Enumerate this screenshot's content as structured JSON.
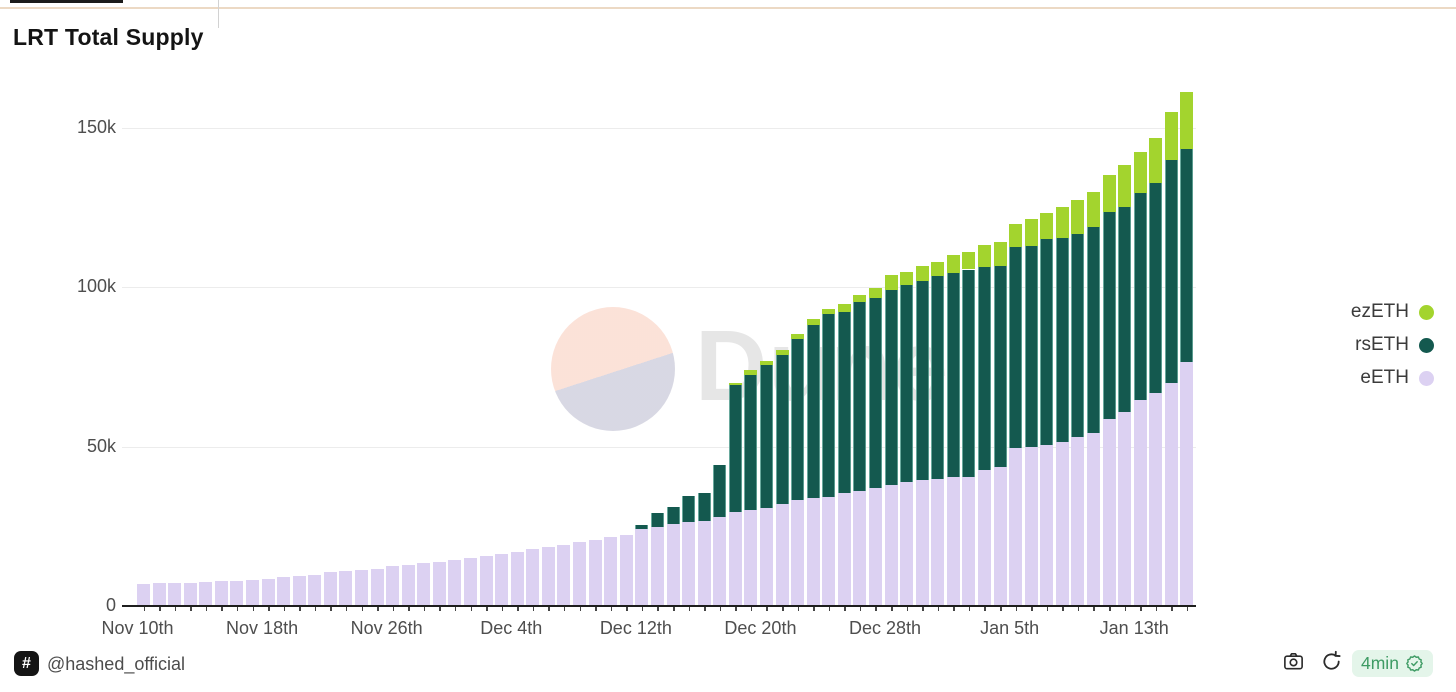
{
  "page": {
    "title": "LRT Total Supply"
  },
  "watermark": {
    "text": "Dune"
  },
  "legend": [
    {
      "label": "ezETH",
      "color": "#a3d42e"
    },
    {
      "label": "rsETH",
      "color": "#14594f"
    },
    {
      "label": "eETH",
      "color": "#dcd1f2"
    }
  ],
  "footer": {
    "hash_icon": "#",
    "handle": "@hashed_official",
    "camera_icon": "camera",
    "refresh_icon": "refresh",
    "age_label": "4min",
    "verified_icon": "verified-badge",
    "age_color": "#3e9b64"
  },
  "chart_data": {
    "type": "bar",
    "stacked": true,
    "title": "LRT Total Supply",
    "unit": "thousand tokens",
    "ylim": [
      0,
      160
    ],
    "grid": "horizontal",
    "legend_position": "right",
    "x": [
      "Nov 10",
      "Nov 11",
      "Nov 12",
      "Nov 13",
      "Nov 14",
      "Nov 15",
      "Nov 16",
      "Nov 17",
      "Nov 18",
      "Nov 19",
      "Nov 20",
      "Nov 21",
      "Nov 22",
      "Nov 23",
      "Nov 24",
      "Nov 25",
      "Nov 26",
      "Nov 27",
      "Nov 28",
      "Nov 29",
      "Nov 30",
      "Dec 1",
      "Dec 2",
      "Dec 3",
      "Dec 4",
      "Dec 5",
      "Dec 6",
      "Dec 7",
      "Dec 8",
      "Dec 9",
      "Dec 10",
      "Dec 11",
      "Dec 12",
      "Dec 13",
      "Dec 14",
      "Dec 15",
      "Dec 16",
      "Dec 17",
      "Dec 18",
      "Dec 19",
      "Dec 20",
      "Dec 21",
      "Dec 22",
      "Dec 23",
      "Dec 24",
      "Dec 25",
      "Dec 26",
      "Dec 27",
      "Dec 28",
      "Dec 29",
      "Dec 30",
      "Dec 31",
      "Jan 1",
      "Jan 2",
      "Jan 3",
      "Jan 4",
      "Jan 5",
      "Jan 6",
      "Jan 7",
      "Jan 8",
      "Jan 9",
      "Jan 10",
      "Jan 11",
      "Jan 12",
      "Jan 13",
      "Jan 14",
      "Jan 15",
      "Jan 16"
    ],
    "series": [
      {
        "name": "eETH",
        "color": "#dcd1f2",
        "values": [
          7.0,
          7.1,
          7.2,
          7.3,
          7.5,
          7.7,
          7.9,
          8.2,
          8.6,
          9.0,
          9.4,
          9.8,
          10.6,
          11.0,
          11.3,
          11.6,
          12.4,
          12.8,
          13.4,
          13.8,
          14.5,
          15.0,
          15.6,
          16.2,
          17.0,
          17.8,
          18.5,
          19.2,
          20.0,
          20.8,
          21.6,
          22.4,
          24.3,
          24.7,
          25.6,
          26.3,
          26.8,
          27.9,
          29.5,
          30.0,
          30.9,
          31.9,
          33.2,
          34.0,
          34.3,
          35.5,
          36.2,
          37.0,
          38.0,
          38.8,
          39.4,
          40.0,
          40.5,
          40.5,
          42.6,
          43.5,
          49.5,
          50.0,
          50.5,
          51.6,
          53.0,
          54.2,
          58.6,
          61.0,
          64.7,
          66.8,
          70.0,
          76.7
        ]
      },
      {
        "name": "rsETH",
        "color": "#14594f",
        "values": [
          0,
          0,
          0,
          0,
          0,
          0,
          0,
          0,
          0,
          0,
          0,
          0,
          0,
          0,
          0,
          0,
          0,
          0,
          0,
          0,
          0,
          0,
          0,
          0,
          0,
          0,
          0,
          0,
          0,
          0,
          0,
          0,
          1.0,
          4.4,
          5.4,
          8.1,
          8.7,
          16.3,
          39.7,
          42.6,
          44.6,
          47.0,
          50.5,
          54.1,
          57.3,
          56.8,
          59.1,
          59.8,
          61.3,
          61.9,
          62.7,
          63.5,
          64.0,
          65.1,
          63.7,
          63.3,
          63.1,
          63.0,
          64.8,
          64.0,
          63.8,
          64.8,
          65.1,
          64.3,
          64.8,
          65.8,
          70.0,
          66.7
        ]
      },
      {
        "name": "ezETH",
        "color": "#a3d42e",
        "values": [
          0,
          0,
          0,
          0,
          0,
          0,
          0,
          0,
          0,
          0,
          0,
          0,
          0,
          0,
          0,
          0,
          0,
          0,
          0,
          0,
          0,
          0,
          0,
          0,
          0,
          0,
          0,
          0,
          0,
          0,
          0,
          0,
          0,
          0,
          0,
          0,
          0,
          0,
          0.9,
          1.6,
          1.5,
          1.4,
          1.6,
          1.9,
          1.6,
          2.4,
          2.3,
          2.9,
          4.6,
          4.2,
          4.7,
          4.6,
          5.5,
          5.5,
          7.1,
          7.4,
          7.4,
          8.6,
          7.9,
          9.7,
          10.6,
          11.0,
          11.6,
          13.1,
          13.1,
          14.4,
          14.9,
          17.9
        ]
      }
    ],
    "yticks": [
      {
        "label": "0",
        "value": 0
      },
      {
        "label": "50k",
        "value": 50
      },
      {
        "label": "100k",
        "value": 100
      },
      {
        "label": "150k",
        "value": 150
      }
    ],
    "xticks": [
      {
        "label": "Nov 10th",
        "index": 0
      },
      {
        "label": "Nov 18th",
        "index": 8
      },
      {
        "label": "Nov 26th",
        "index": 16
      },
      {
        "label": "Dec 4th",
        "index": 24
      },
      {
        "label": "Dec 12th",
        "index": 32
      },
      {
        "label": "Dec 20th",
        "index": 40
      },
      {
        "label": "Dec 28th",
        "index": 48
      },
      {
        "label": "Jan 5th",
        "index": 56
      },
      {
        "label": "Jan 13th",
        "index": 64
      }
    ]
  }
}
